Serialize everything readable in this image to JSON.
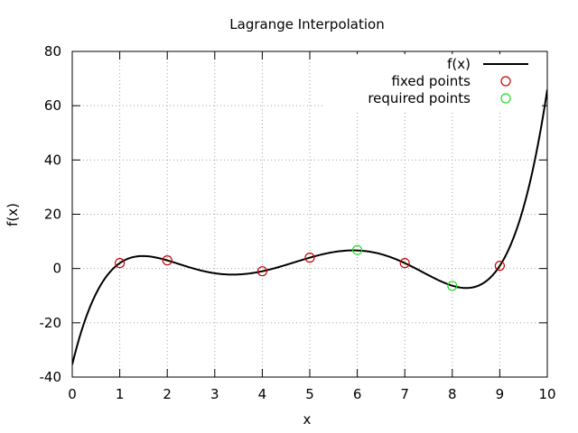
{
  "chart_data": {
    "type": "line",
    "title": "Lagrange Interpolation",
    "xlabel": "x",
    "ylabel": "f(x)",
    "xlim": [
      0,
      10
    ],
    "ylim": [
      -40,
      80
    ],
    "xticks": [
      0,
      1,
      2,
      3,
      4,
      5,
      6,
      7,
      8,
      9,
      10
    ],
    "yticks": [
      -40,
      -20,
      0,
      20,
      40,
      60,
      80
    ],
    "grid": true,
    "legend_position": "top-right",
    "series": [
      {
        "name": "f(x)",
        "kind": "line",
        "color": "#000000",
        "x": [
          1,
          2,
          4,
          5,
          7,
          9
        ],
        "y": [
          2,
          3,
          -1,
          4,
          2,
          1
        ],
        "domain": [
          0,
          10
        ]
      },
      {
        "name": "fixed points",
        "kind": "points",
        "color": "#cc0000",
        "x": [
          1,
          2,
          4,
          5,
          7,
          9
        ],
        "y": [
          2,
          3,
          -1,
          4,
          2,
          1
        ]
      },
      {
        "name": "required points",
        "kind": "points",
        "color": "#22dd22",
        "x": [
          6,
          8
        ],
        "y": [
          6.8,
          -6.4
        ]
      }
    ]
  }
}
